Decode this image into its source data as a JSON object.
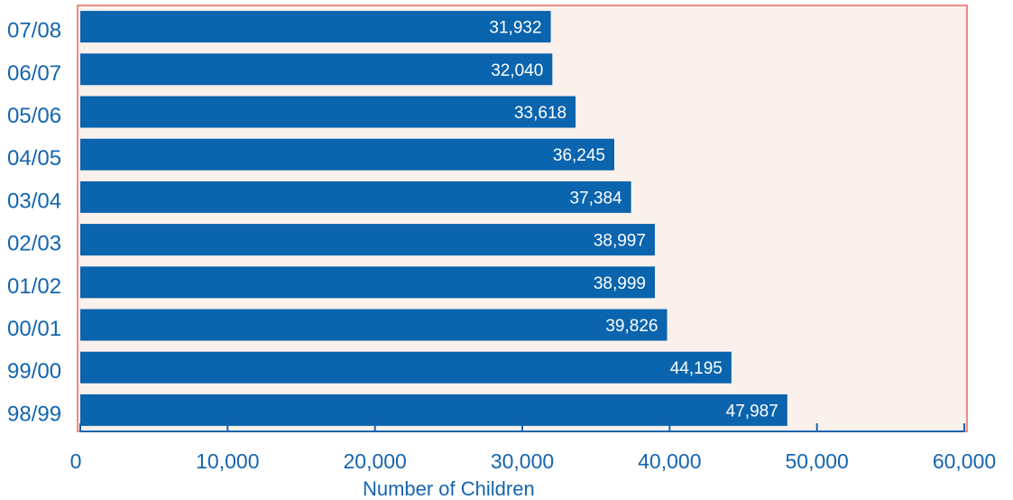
{
  "chart_data": {
    "type": "bar",
    "orientation": "horizontal",
    "categories": [
      "07/08",
      "06/07",
      "05/06",
      "04/05",
      "03/04",
      "02/03",
      "01/02",
      "00/01",
      "99/00",
      "98/99"
    ],
    "values": [
      31932,
      32040,
      33618,
      36245,
      37384,
      38997,
      38999,
      39826,
      44195,
      47987
    ],
    "data_labels": [
      "31,932",
      "32,040",
      "33,618",
      "36,245",
      "37,384",
      "38,997",
      "38,999",
      "39,826",
      "44,195",
      "47,987"
    ],
    "xlabel": "Number of Children",
    "ylabel": "",
    "title": "",
    "xlim": [
      0,
      60000
    ],
    "xticks": [
      0,
      10000,
      20000,
      30000,
      40000,
      50000,
      60000
    ],
    "xtick_labels": [
      "0",
      "10,000",
      "20,000",
      "30,000",
      "40,000",
      "50,000",
      "60,000"
    ],
    "grid": false,
    "legend": "none"
  },
  "colors": {
    "bar": "#0a64ae",
    "plot_background": "#fbf1ec",
    "plot_border": "#e46a5e",
    "axis": "#1465ae",
    "text": "#1465ae",
    "data_label_text": "#ffffff"
  }
}
